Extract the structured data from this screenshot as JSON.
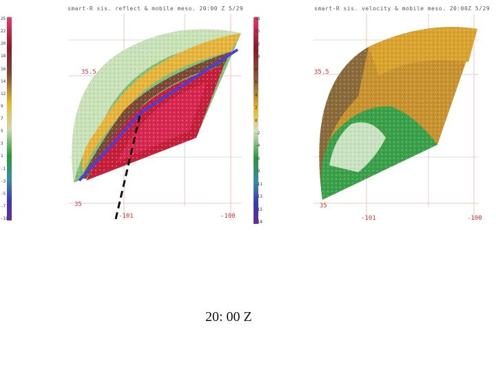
{
  "left_panel": {
    "header": "smart-R sis. reflect & mobile meso. 20:00 Z 5/29",
    "colorbar_ticks": [
      "25",
      "22",
      "20",
      "18",
      "16",
      "14",
      "12",
      "9",
      "7",
      "5",
      "3",
      "1",
      "-1",
      "-3",
      "-5",
      "-7",
      "-10"
    ],
    "lat_labels": [
      "35.5",
      "35"
    ],
    "lon_labels": [
      "-101",
      "-100"
    ]
  },
  "right_panel": {
    "header": "smart-R sis. velocity & mobile meso. 20:00Z 5/29",
    "colorbar_ticks": [
      "18",
      "15",
      "12",
      "10",
      "8",
      "6",
      "4",
      "2",
      "0",
      "-2",
      "-4",
      "-6",
      "-9",
      "-11",
      "-13",
      "-15",
      "-18"
    ],
    "lat_labels": [
      "35.5",
      "35"
    ],
    "lon_labels": [
      "-101",
      "-100"
    ]
  },
  "time_label": "20: 00 Z",
  "colors": {
    "blue_line": "#4a3fd8",
    "dash_line": "#111111",
    "grid_red": "#e08a8a"
  }
}
